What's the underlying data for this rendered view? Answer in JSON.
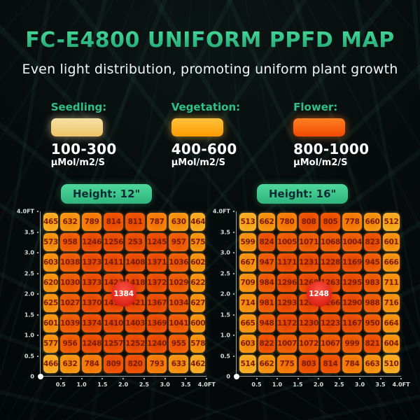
{
  "title": "FC-E4800 UNIFORM PPFD MAP",
  "subtitle": "Even light distribution, promoting uniform plant growth",
  "colors": {
    "title_green_top": "#4ade9d",
    "title_green_bottom": "#1e9e6e",
    "accent_green": "#2fc08a",
    "height_badge_green": "#3ecb92",
    "badge_red": "#d71f12",
    "axis_label": "#d8ded9",
    "cell_text": "#7c1c00"
  },
  "legend": {
    "items": [
      {
        "name": "Seedling:",
        "range": "100-300",
        "unit": "μMol/m2/S",
        "swatch_top": "#f7e0a4",
        "swatch_bottom": "#edc468"
      },
      {
        "name": "Vegetation:",
        "range": "400-600",
        "unit": "μMol/m2/S",
        "swatch_top": "#ffc23d",
        "swatch_bottom": "#ff9b00"
      },
      {
        "name": "Flower:",
        "range": "800-1000",
        "unit": "μMol/m2/S",
        "swatch_top": "#ff7f22",
        "swatch_bottom": "#f04a00"
      }
    ]
  },
  "heat_bands": [
    {
      "max": 540,
      "center": "#f59a14",
      "base": "#f9b32c",
      "rim": "#ffd76a"
    },
    {
      "max": 760,
      "center": "#f07f06",
      "base": "#f89d18",
      "rim": "#ffc84f"
    },
    {
      "max": 802,
      "center": "#ee6a03",
      "base": "#f8860e",
      "rim": "#ffb43a"
    },
    {
      "max": 900,
      "center": "#e34400",
      "base": "#f25a06",
      "rim": "#ff9a2e"
    },
    {
      "max": 1160,
      "center": "#e64d01",
      "base": "#f36508",
      "rim": "#ffa335"
    },
    {
      "max": 99999,
      "center": "#dd3f00",
      "base": "#f25703",
      "rim": "#ff9226"
    }
  ],
  "chart_data": [
    {
      "type": "heatmap",
      "title": "Height: 12\"",
      "center_badge": "1384",
      "x_ticks": [
        "0.5",
        "1.0",
        "1.5",
        "2.0",
        "2.5",
        "3.0",
        "3.5",
        "4.0FT"
      ],
      "y_ticks": [
        "4.0FT",
        "3.5",
        "3.0",
        "2.5",
        "2.0",
        "1.5",
        "1.0",
        "0.5",
        "0"
      ],
      "x_range_ft": [
        0,
        4
      ],
      "y_range_ft": [
        0,
        4
      ],
      "values": [
        [
          465,
          632,
          789,
          814,
          811,
          787,
          630,
          464
        ],
        [
          573,
          958,
          1246,
          1256,
          253,
          1245,
          957,
          575
        ],
        [
          603,
          1038,
          1373,
          1411,
          1408,
          1371,
          1036,
          602
        ],
        [
          620,
          1030,
          1373,
          1423,
          1418,
          1372,
          1029,
          622
        ],
        [
          625,
          1027,
          1370,
          1415,
          1421,
          1367,
          1034,
          627
        ],
        [
          601,
          1039,
          1374,
          1410,
          1403,
          1369,
          1041,
          600
        ],
        [
          577,
          956,
          1248,
          1257,
          1252,
          1240,
          955,
          578
        ],
        [
          466,
          632,
          784,
          809,
          820,
          793,
          633,
          462
        ]
      ]
    },
    {
      "type": "heatmap",
      "title": "Height: 16\"",
      "center_badge": "1248",
      "x_ticks": [
        "0.5",
        "1.0",
        "1.5",
        "2.0",
        "2.5",
        "3.0",
        "3.5",
        "4.0FT"
      ],
      "y_ticks": [
        "4.0FT",
        "3.5",
        "3.0",
        "2.5",
        "2.0",
        "1.5",
        "1.0",
        "0.5",
        "0"
      ],
      "x_range_ft": [
        0,
        4
      ],
      "y_range_ft": [
        0,
        4
      ],
      "values": [
        [
          513,
          662,
          780,
          808,
          805,
          778,
          660,
          512
        ],
        [
          599,
          824,
          1005,
          1071,
          1068,
          1004,
          823,
          601
        ],
        [
          667,
          947,
          1171,
          1231,
          1228,
          1169,
          945,
          666
        ],
        [
          709,
          984,
          1296,
          1268,
          1263,
          1295,
          983,
          711
        ],
        [
          714,
          981,
          1293,
          1260,
          1266,
          1290,
          988,
          716
        ],
        [
          665,
          948,
          1172,
          1230,
          1223,
          1167,
          950,
          664
        ],
        [
          603,
          822,
          1007,
          1072,
          1067,
          999,
          821,
          604
        ],
        [
          514,
          662,
          775,
          803,
          814,
          784,
          663,
          510
        ]
      ]
    }
  ]
}
